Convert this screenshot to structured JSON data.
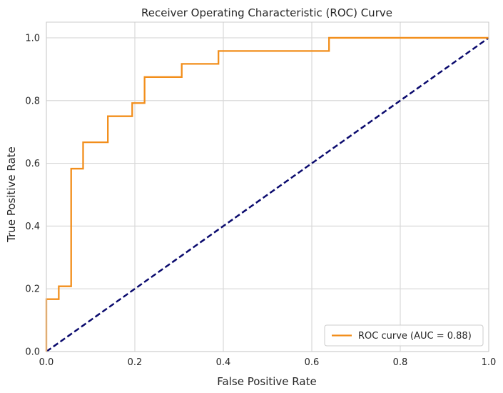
{
  "chart_data": {
    "type": "line",
    "title": "Receiver Operating Characteristic (ROC) Curve",
    "xlabel": "False Positive Rate",
    "ylabel": "True Positive Rate",
    "xlim": [
      0.0,
      1.0
    ],
    "ylim": [
      0.0,
      1.05
    ],
    "xticks": [
      0.0,
      0.2,
      0.4,
      0.6,
      0.8,
      1.0
    ],
    "yticks": [
      0.0,
      0.2,
      0.4,
      0.6,
      0.8,
      1.0
    ],
    "xtick_labels": [
      "0.0",
      "0.2",
      "0.4",
      "0.6",
      "0.8",
      "1.0"
    ],
    "ytick_labels": [
      "0.0",
      "0.2",
      "0.4",
      "0.6",
      "0.8",
      "1.0"
    ],
    "grid": true,
    "legend_position": "lower-right",
    "series": [
      {
        "name": "ROC curve (AUC = 0.88)",
        "color": "#F28E1B",
        "style": "solid",
        "x": [
          0.0,
          0.0,
          0.028,
          0.028,
          0.056,
          0.056,
          0.083,
          0.083,
          0.139,
          0.139,
          0.194,
          0.194,
          0.222,
          0.222,
          0.306,
          0.306,
          0.389,
          0.389,
          0.639,
          0.639,
          1.0
        ],
        "y": [
          0.0,
          0.167,
          0.167,
          0.208,
          0.208,
          0.583,
          0.583,
          0.667,
          0.667,
          0.75,
          0.75,
          0.792,
          0.792,
          0.875,
          0.875,
          0.917,
          0.917,
          0.958,
          0.958,
          1.0,
          1.0
        ]
      },
      {
        "color": "#0B0B6E",
        "style": "dashed",
        "x": [
          0.0,
          1.0
        ],
        "y": [
          0.0,
          1.0
        ]
      }
    ]
  }
}
